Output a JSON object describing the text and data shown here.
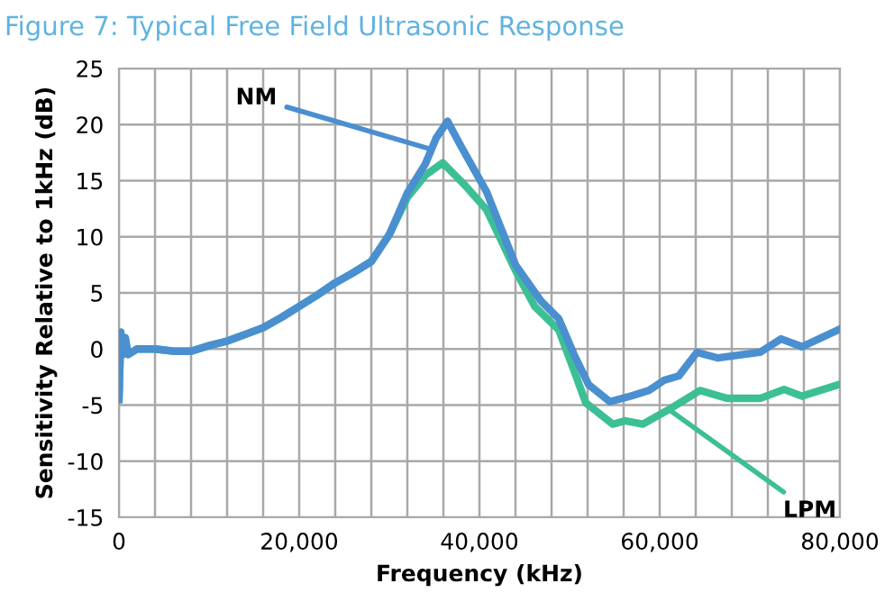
{
  "chart_data": {
    "type": "line",
    "title": "Figure 7: Typical Free Field Ultrasonic Response",
    "xlabel": "Frequency (kHz)",
    "ylabel": "Sensitivity Relative to 1kHz (dB)",
    "series": [
      {
        "color": "#4a8fd0",
        "x": [
          0,
          200,
          400,
          700,
          1000,
          2000,
          4000,
          6000,
          8000,
          10000,
          12000,
          14000,
          16000,
          18000,
          20000,
          22000,
          24000,
          26000,
          28000,
          30000,
          32000,
          34000,
          35200,
          36460,
          38000,
          40800,
          44000,
          46800,
          48800,
          50500,
          52130,
          54470,
          56800,
          58800,
          60470,
          62130,
          64130,
          66470,
          71130,
          73470,
          75800,
          79800
        ],
        "values": [
          -4.5,
          1.5,
          -0.5,
          1,
          -0.5,
          0,
          0,
          -0.2,
          -0.2,
          0.3,
          0.7,
          1.3,
          1.9,
          2.8,
          3.8,
          4.8,
          5.9,
          6.8,
          7.8,
          10.2,
          13.9,
          16.5,
          18.8,
          20.3,
          18,
          14,
          7.5,
          4.3,
          2.7,
          -0.5,
          -3.2,
          -4.7,
          -4.2,
          -3.7,
          -2.8,
          -2.4,
          -0.3,
          -0.8,
          -0.3,
          0.9,
          0.2,
          1.7
        ]
      },
      {
        "color": "#3dbf95",
        "x": [
          0,
          200,
          400,
          700,
          1000,
          2000,
          4000,
          6000,
          8000,
          10000,
          12000,
          14000,
          16000,
          18000,
          20000,
          22000,
          24000,
          26000,
          28000,
          30000,
          32000,
          34000,
          35930,
          38500,
          40800,
          44000,
          46130,
          48800,
          50300,
          51800,
          54800,
          56130,
          58130,
          60800,
          64470,
          67470,
          71130,
          73800,
          75800,
          79800
        ],
        "values": [
          -4.5,
          1.5,
          -0.5,
          1,
          -0.5,
          0,
          0,
          -0.2,
          -0.2,
          0.3,
          0.7,
          1.3,
          1.9,
          2.8,
          3.8,
          4.8,
          5.9,
          6.8,
          7.8,
          10.2,
          13.5,
          15.5,
          16.6,
          14.5,
          12.4,
          7,
          3.8,
          1.7,
          -1.5,
          -4.8,
          -6.7,
          -6.4,
          -6.7,
          -5.5,
          -3.7,
          -4.4,
          -4.4,
          -3.6,
          -4.2,
          -3.2
        ]
      }
    ],
    "annotations": [
      {
        "text": "NM",
        "x": 34200,
        "y": 17.9
      },
      {
        "text": "LPM",
        "x": 61200,
        "y": -5.5
      }
    ],
    "xlim": [
      0,
      80000
    ],
    "ylim": [
      -15,
      25
    ],
    "xticks": [
      0,
      {
        "value": 4000,
        "label": null
      },
      {
        "value": 8000,
        "label": null
      },
      {
        "value": 12000,
        "label": null
      },
      {
        "value": 16000,
        "label": null
      },
      {
        "value": 20000,
        "label": "20,000"
      },
      {
        "value": 24000,
        "label": null
      },
      {
        "value": 28000,
        "label": null
      },
      {
        "value": 32000,
        "label": null
      },
      {
        "value": 36000,
        "label": null
      },
      {
        "value": 40000,
        "label": "40,000"
      },
      {
        "value": 44000,
        "label": null
      },
      {
        "value": 48000,
        "label": null
      },
      {
        "value": 52000,
        "label": null
      },
      {
        "value": 56000,
        "label": null
      },
      {
        "value": 60000,
        "label": "60,000"
      },
      {
        "value": 64000,
        "label": null
      },
      {
        "value": 68000,
        "label": null
      },
      {
        "value": 72000,
        "label": null
      },
      {
        "value": 76000,
        "label": null
      },
      {
        "value": 80000,
        "label": "80,000"
      }
    ],
    "yticks": [
      -15,
      -10,
      -5,
      0,
      5,
      10,
      15,
      20,
      25
    ],
    "grid": true,
    "legend": false,
    "line_style": "solid",
    "marker": "none"
  }
}
